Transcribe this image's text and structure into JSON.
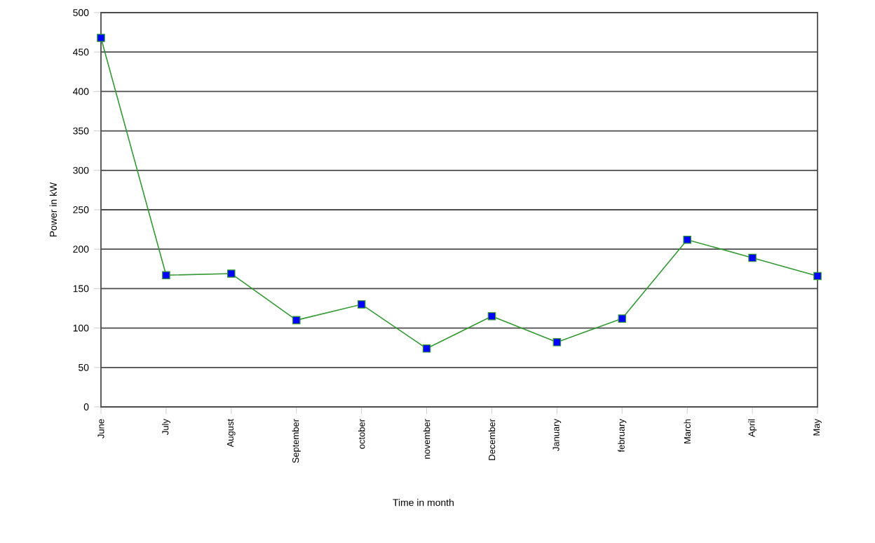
{
  "chart_data": {
    "type": "line",
    "xlabel": "Time in month",
    "ylabel": "Power in kW",
    "categories": [
      "June",
      "July",
      "August",
      "September",
      "october",
      "november",
      "December",
      "January",
      "february",
      "March",
      "April",
      "May"
    ],
    "series": [
      {
        "color": "#339933",
        "colors": [
          "#0000ff",
          "#0000ff",
          "#0000ff",
          "#0000ff",
          "#0000ff",
          "#0000ff",
          "#0000ff",
          "#0000ff",
          "#0000ff",
          "#0000ff",
          "#0000ff",
          "#0000ff"
        ],
        "values": [
          468,
          167,
          169,
          110,
          130,
          74,
          115,
          82,
          112,
          212,
          189,
          166
        ]
      }
    ],
    "ylim": [
      0,
      500
    ],
    "yticks": [
      0,
      50,
      100,
      150,
      200,
      250,
      300,
      350,
      400,
      450,
      500
    ],
    "grid": "y",
    "marker": "square",
    "line_style": "solid"
  }
}
